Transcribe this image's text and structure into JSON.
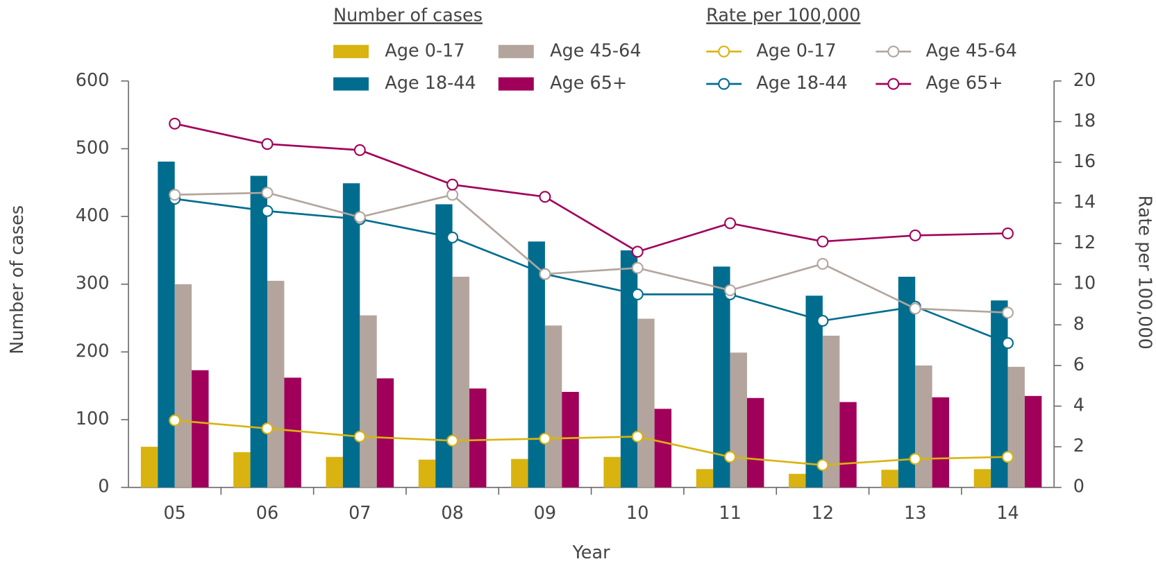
{
  "chart_data": {
    "type": "bar",
    "legend_titles": [
      "Number of cases",
      "Rate per 100,000"
    ],
    "xlabel": "Year",
    "ylabel": "Number of cases",
    "y2label": "Rate per 100,000",
    "categories": [
      "05",
      "06",
      "07",
      "08",
      "09",
      "10",
      "11",
      "12",
      "13",
      "14"
    ],
    "ylim": [
      0,
      600
    ],
    "yticks": [
      0,
      100,
      200,
      300,
      400,
      500,
      600
    ],
    "y2lim": [
      0,
      20
    ],
    "y2ticks": [
      0,
      2,
      4,
      6,
      8,
      10,
      12,
      14,
      16,
      18,
      20
    ],
    "series": [
      {
        "name": "Age 0-17",
        "color": "#d9b310",
        "values": [
          60,
          52,
          45,
          41,
          42,
          45,
          27,
          20,
          26,
          27
        ]
      },
      {
        "name": "Age 18-44",
        "color": "#006d8f",
        "values": [
          481,
          460,
          449,
          418,
          363,
          350,
          326,
          283,
          311,
          276
        ]
      },
      {
        "name": "Age 45-64",
        "color": "#b3a59d",
        "values": [
          300,
          305,
          254,
          311,
          239,
          249,
          199,
          224,
          180,
          178
        ]
      },
      {
        "name": "Age 65+",
        "color": "#a1005a",
        "values": [
          173,
          162,
          161,
          146,
          141,
          116,
          132,
          126,
          133,
          135
        ]
      },
      {
        "name": "Age 0-17",
        "color": "#d9b310",
        "axis": "y2",
        "values": [
          3.3,
          2.9,
          2.5,
          2.3,
          2.4,
          2.5,
          1.5,
          1.1,
          1.4,
          1.5
        ]
      },
      {
        "name": "Age 18-44",
        "color": "#006d8f",
        "axis": "y2",
        "values": [
          14.2,
          13.6,
          13.2,
          12.3,
          10.5,
          9.5,
          9.5,
          8.2,
          8.9,
          7.1
        ]
      },
      {
        "name": "Age 45-64",
        "color": "#b3a59d",
        "axis": "y2",
        "values": [
          14.4,
          14.5,
          13.3,
          14.4,
          10.5,
          10.8,
          9.7,
          11.0,
          8.8,
          8.6
        ]
      },
      {
        "name": "Age 65+",
        "color": "#a1005a",
        "axis": "y2",
        "values": [
          17.9,
          16.9,
          16.6,
          14.9,
          14.3,
          11.6,
          13.0,
          12.1,
          12.4,
          12.5
        ]
      }
    ]
  }
}
